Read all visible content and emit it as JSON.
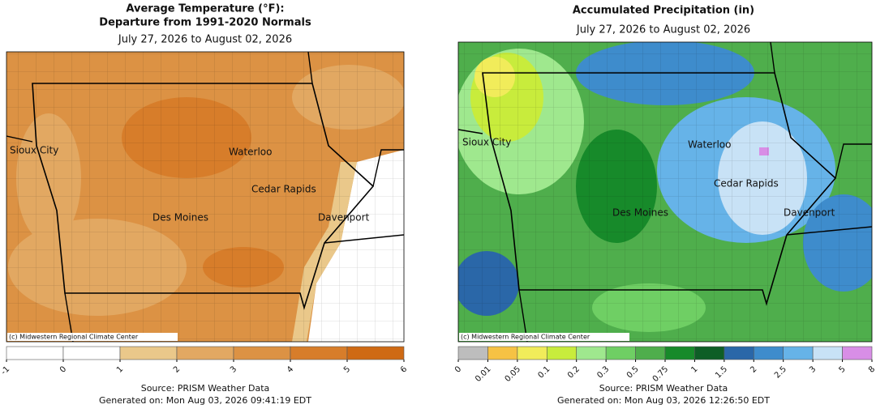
{
  "panels": [
    {
      "title_lines": [
        "Average Temperature (°F):",
        "Departure from 1991-2020 Normals"
      ],
      "subtitle": "July 27, 2026 to August 02, 2026",
      "cities": [
        "Sioux City",
        "Waterloo",
        "Cedar Rapids",
        "Des Moines",
        "Davenport"
      ],
      "credit": "(c) Midwestern Regional Climate Center",
      "legend": {
        "ticks": [
          -1,
          0,
          1,
          2,
          3,
          4,
          5,
          6
        ],
        "colors": [
          "#ffffff",
          "#ffffff",
          "#eac88a",
          "#e2a862",
          "#dc9244",
          "#d77d2a",
          "#cf6a14"
        ]
      },
      "source": "Source: PRISM Weather Data",
      "generated": "Generated on: Mon Aug 03, 2026 09:41:19 EDT"
    },
    {
      "title_lines": [
        "Accumulated Precipitation (in)"
      ],
      "subtitle": "July 27, 2026 to August 02, 2026",
      "cities": [
        "Sioux City",
        "Waterloo",
        "Cedar Rapids",
        "Des Moines",
        "Davenport"
      ],
      "credit": "(c) Midwestern Regional Climate Center",
      "legend": {
        "ticks": [
          0,
          0.01,
          0.05,
          0.1,
          0.2,
          0.3,
          0.5,
          0.75,
          1,
          1.5,
          2,
          2.5,
          3,
          5,
          8
        ],
        "colors": [
          "#bdbdbd",
          "#f6c244",
          "#f1ec5a",
          "#c8ec3c",
          "#9fe88e",
          "#6fcf64",
          "#4fae4c",
          "#178a2a",
          "#0e5e26",
          "#2a67a8",
          "#3e8ccc",
          "#66b3e8",
          "#c8e2f6",
          "#d88ee6"
        ]
      },
      "source": "Source: PRISM Weather Data",
      "generated": "Generated on: Mon Aug 03, 2026 12:26:50 EDT"
    }
  ]
}
